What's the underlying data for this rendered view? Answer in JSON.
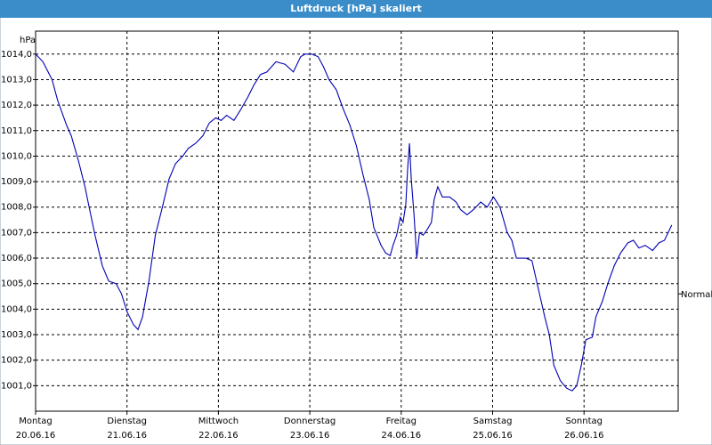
{
  "chart_data": {
    "type": "line",
    "title": "Luftdruck [hPa] skaliert",
    "y_label": "hPa",
    "color": "#0000b4",
    "grid": true,
    "xlim": [
      0,
      7.03
    ],
    "ylim": [
      1000,
      1014.9
    ],
    "xticks": [
      {
        "value": 0,
        "label": [
          "Montag",
          "20.06.16"
        ]
      },
      {
        "value": 1,
        "label": [
          "Dienstag",
          "21.06.16"
        ]
      },
      {
        "value": 2,
        "label": [
          "Mittwoch",
          "22.06.16"
        ]
      },
      {
        "value": 3,
        "label": [
          "Donnerstag",
          "23.06.16"
        ]
      },
      {
        "value": 4,
        "label": [
          "Freitag",
          "24.06.16"
        ]
      },
      {
        "value": 5,
        "label": [
          "Samstag",
          "25.06.16"
        ]
      },
      {
        "value": 6,
        "label": [
          "Sonntag",
          "26.06.16"
        ]
      }
    ],
    "yticks": [
      {
        "value": 1001,
        "label": "1001,0"
      },
      {
        "value": 1002,
        "label": "1002,0"
      },
      {
        "value": 1003,
        "label": "1003,0"
      },
      {
        "value": 1004,
        "label": "1004,0"
      },
      {
        "value": 1005,
        "label": "1005,0"
      },
      {
        "value": 1006,
        "label": "1006,0"
      },
      {
        "value": 1007,
        "label": "1007,0"
      },
      {
        "value": 1008,
        "label": "1008,0"
      },
      {
        "value": 1009,
        "label": "1009,0"
      },
      {
        "value": 1010,
        "label": "1010,0"
      },
      {
        "value": 1011,
        "label": "1011,0"
      },
      {
        "value": 1012,
        "label": "1012,0"
      },
      {
        "value": 1013,
        "label": "1013,0"
      },
      {
        "value": 1014,
        "label": "1014,0"
      }
    ],
    "reference": {
      "value": 1004.6,
      "label": "Normal"
    },
    "x": [
      0,
      0.08,
      0.18,
      0.24,
      0.34,
      0.39,
      0.47,
      0.54,
      0.58,
      0.65,
      0.73,
      0.8,
      0.88,
      0.94,
      1.0,
      1.07,
      1.12,
      1.17,
      1.24,
      1.31,
      1.38,
      1.46,
      1.53,
      1.61,
      1.67,
      1.75,
      1.83,
      1.9,
      1.97,
      2.03,
      2.09,
      2.17,
      2.24,
      2.32,
      2.39,
      2.46,
      2.53,
      2.63,
      2.73,
      2.82,
      2.9,
      2.95,
      3.02,
      3.09,
      3.15,
      3.21,
      3.29,
      3.36,
      3.44,
      3.51,
      3.58,
      3.65,
      3.7,
      3.78,
      3.83,
      3.88,
      3.91,
      3.95,
      3.99,
      4.02,
      4.05,
      4.07,
      4.09,
      4.11,
      4.14,
      4.17,
      4.2,
      4.24,
      4.28,
      4.33,
      4.36,
      4.4,
      4.45,
      4.53,
      4.6,
      4.65,
      4.72,
      4.79,
      4.87,
      4.94,
      5.01,
      5.08,
      5.16,
      5.21,
      5.26,
      5.36,
      5.43,
      5.5,
      5.57,
      5.62,
      5.67,
      5.74,
      5.81,
      5.87,
      5.92,
      5.97,
      6.02,
      6.09,
      6.13,
      6.2,
      6.26,
      6.33,
      6.4,
      6.48,
      6.54,
      6.6,
      6.67,
      6.75,
      6.82,
      6.88,
      6.96
    ],
    "values": [
      1014.0,
      1013.7,
      1013.0,
      1012.2,
      1011.2,
      1010.8,
      1009.8,
      1008.8,
      1008.1,
      1006.9,
      1005.7,
      1005.1,
      1005.0,
      1004.6,
      1003.9,
      1003.4,
      1003.2,
      1003.7,
      1005.1,
      1006.9,
      1007.9,
      1009.1,
      1009.7,
      1010.0,
      1010.3,
      1010.5,
      1010.8,
      1011.3,
      1011.5,
      1011.4,
      1011.6,
      1011.4,
      1011.8,
      1012.3,
      1012.8,
      1013.2,
      1013.3,
      1013.7,
      1013.6,
      1013.3,
      1013.9,
      1014.0,
      1014.0,
      1013.9,
      1013.5,
      1013.0,
      1012.6,
      1011.9,
      1011.2,
      1010.4,
      1009.3,
      1008.3,
      1007.2,
      1006.5,
      1006.2,
      1006.1,
      1006.5,
      1006.9,
      1007.6,
      1007.4,
      1008.1,
      1009.5,
      1010.5,
      1009.1,
      1007.7,
      1006.0,
      1007.0,
      1006.9,
      1007.1,
      1007.4,
      1008.3,
      1008.8,
      1008.4,
      1008.4,
      1008.2,
      1007.9,
      1007.7,
      1007.9,
      1008.2,
      1008.0,
      1008.4,
      1008.0,
      1007.0,
      1006.7,
      1006.0,
      1006.0,
      1005.9,
      1004.8,
      1003.7,
      1003.0,
      1001.8,
      1001.2,
      1000.9,
      1000.8,
      1001.0,
      1001.8,
      1002.8,
      1002.9,
      1003.7,
      1004.3,
      1005.0,
      1005.7,
      1006.2,
      1006.6,
      1006.7,
      1006.4,
      1006.5,
      1006.3,
      1006.6,
      1006.7,
      1007.3
    ]
  }
}
